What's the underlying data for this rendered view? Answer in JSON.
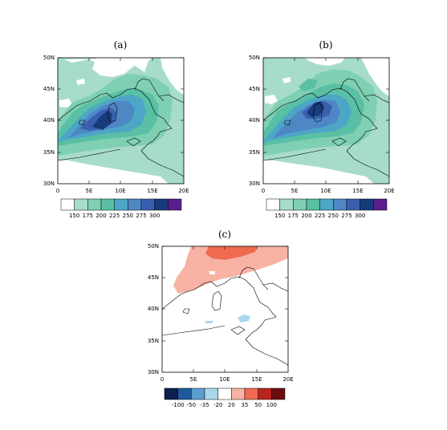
{
  "panels": [
    {
      "id": "a",
      "title": "(a)",
      "lat_ticks": [
        "50N",
        "45N",
        "40N",
        "35N",
        "30N"
      ],
      "lon_ticks": [
        "0",
        "5E",
        "10E",
        "15E",
        "20E"
      ],
      "colorbar": {
        "labels": [
          "150",
          "175",
          "200",
          "225",
          "250",
          "275",
          "300"
        ],
        "colors": [
          "#ffffff",
          "#a7dcc9",
          "#7fcfb3",
          "#59bfa5",
          "#4da6c6",
          "#4f86c4",
          "#3a5fb0",
          "#173c7a",
          "#5a1e8e"
        ]
      }
    },
    {
      "id": "b",
      "title": "(b)",
      "lat_ticks": [
        "50N",
        "45N",
        "40N",
        "35N",
        "30N"
      ],
      "lon_ticks": [
        "0",
        "5E",
        "10E",
        "15E",
        "20E"
      ],
      "colorbar": {
        "labels": [
          "150",
          "175",
          "200",
          "225",
          "250",
          "275",
          "300"
        ],
        "colors": [
          "#ffffff",
          "#a7dcc9",
          "#7fcfb3",
          "#59bfa5",
          "#4da6c6",
          "#4f86c4",
          "#3a5fb0",
          "#173c7a",
          "#5a1e8e"
        ]
      }
    },
    {
      "id": "c",
      "title": "(c)",
      "lat_ticks": [
        "50N",
        "45N",
        "40N",
        "35N",
        "30N"
      ],
      "lon_ticks": [
        "0",
        "5E",
        "10E",
        "15E",
        "20E"
      ],
      "colorbar": {
        "labels": [
          "-100",
          "-50",
          "-35",
          "-20",
          "20",
          "35",
          "50",
          "100"
        ],
        "colors": [
          "#0d1f4d",
          "#1f5a9c",
          "#5a9fd1",
          "#a9d6e8",
          "#ffffff",
          "#f7b2a3",
          "#ef6a4f",
          "#b8251e",
          "#6b0d0d"
        ]
      }
    }
  ]
}
